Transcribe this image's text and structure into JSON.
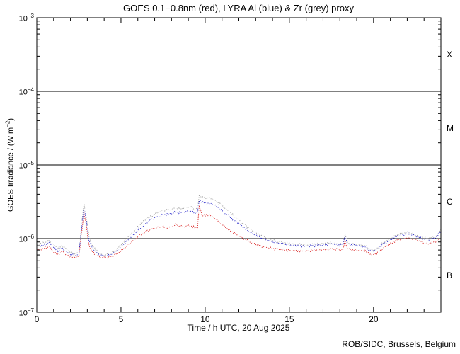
{
  "footer": "ROB/SIDC, Brussels, Belgium",
  "chart_data": {
    "type": "line",
    "title": "GOES 0.1−0.8nm (red), LYRA Al (blue) & Zr (grey) proxy",
    "xlabel": "Time / h UTC, 20 Aug 2025",
    "ylabel_main": "GOES Irradiance / (W m",
    "ylabel_sup": "−2",
    "ylabel_close": ")",
    "y_unit": "W m^-2",
    "xlim": [
      0,
      24
    ],
    "ylog_exponent_range": [
      -7,
      -3
    ],
    "x_major_ticks": [
      0,
      5,
      10,
      15,
      20
    ],
    "x_minor_step_hours": 1,
    "y_decade_exponents": [
      -3,
      -4,
      -5,
      -6,
      -7
    ],
    "threshold_lines": [
      0.0001,
      1e-05,
      1e-06
    ],
    "flare_classes": [
      {
        "label": "X",
        "band_log_center": -3.5
      },
      {
        "label": "M",
        "band_log_center": -4.5
      },
      {
        "label": "C",
        "band_log_center": -5.5
      },
      {
        "label": "B",
        "band_log_center": -6.5
      }
    ],
    "grid": "off",
    "legend": "encoded in title",
    "value_scale": 1e-06,
    "x_hours": [
      0,
      0.25,
      0.5,
      0.75,
      1,
      1.25,
      1.5,
      1.75,
      2,
      2.25,
      2.5,
      2.65,
      2.8,
      2.95,
      3.1,
      3.25,
      3.5,
      3.75,
      4,
      4.25,
      4.5,
      4.75,
      5,
      5.25,
      5.5,
      5.75,
      6,
      6.25,
      6.5,
      6.75,
      7,
      7.25,
      7.5,
      7.75,
      8,
      8.25,
      8.5,
      8.75,
      9,
      9.25,
      9.4,
      9.55,
      9.65,
      9.8,
      10,
      10.25,
      10.5,
      10.75,
      11,
      11.25,
      11.5,
      11.75,
      12,
      12.25,
      12.5,
      12.75,
      13,
      13.25,
      13.5,
      13.75,
      14,
      14.25,
      14.5,
      14.75,
      15,
      15.5,
      16,
      16.5,
      17,
      17.5,
      18,
      18.2,
      18.3,
      18.45,
      18.75,
      19,
      19.25,
      19.5,
      19.75,
      20,
      20.25,
      20.5,
      20.75,
      21,
      21.25,
      21.5,
      21.75,
      22,
      22.25,
      22.5,
      22.75,
      23,
      23.25,
      23.5,
      23.75,
      24
    ],
    "series": [
      {
        "name": "GOES 0.1-0.8nm",
        "color": "#d81f1f",
        "values": [
          0.7,
          0.72,
          0.75,
          0.78,
          0.66,
          0.6,
          0.67,
          0.6,
          0.57,
          0.56,
          0.58,
          1.1,
          2.3,
          1.4,
          0.82,
          0.68,
          0.6,
          0.56,
          0.55,
          0.56,
          0.58,
          0.62,
          0.68,
          0.76,
          0.86,
          0.95,
          1.05,
          1.15,
          1.25,
          1.32,
          1.38,
          1.42,
          1.45,
          1.42,
          1.45,
          1.55,
          1.48,
          1.45,
          1.5,
          1.45,
          1.4,
          1.45,
          2.8,
          2.1,
          2.05,
          2.1,
          1.95,
          1.75,
          1.55,
          1.4,
          1.28,
          1.18,
          1.08,
          1.0,
          0.94,
          0.88,
          0.84,
          0.8,
          0.77,
          0.75,
          0.73,
          0.72,
          0.71,
          0.7,
          0.69,
          0.68,
          0.68,
          0.7,
          0.7,
          0.73,
          0.7,
          0.72,
          0.95,
          0.73,
          0.7,
          0.7,
          0.69,
          0.68,
          0.62,
          0.6,
          0.65,
          0.72,
          0.79,
          0.85,
          0.92,
          0.97,
          1.0,
          1.02,
          1.0,
          0.97,
          0.92,
          0.88,
          0.85,
          0.9,
          0.93,
          1.0
        ]
      },
      {
        "name": "LYRA Al proxy",
        "color": "#2323c8",
        "values": [
          0.78,
          0.8,
          0.82,
          0.88,
          0.76,
          0.68,
          0.74,
          0.66,
          0.61,
          0.59,
          0.61,
          1.3,
          2.6,
          1.7,
          0.95,
          0.78,
          0.66,
          0.6,
          0.58,
          0.59,
          0.62,
          0.68,
          0.77,
          0.88,
          1.0,
          1.12,
          1.3,
          1.45,
          1.62,
          1.78,
          1.9,
          2.0,
          2.1,
          2.15,
          2.2,
          2.28,
          2.25,
          2.3,
          2.35,
          2.3,
          2.2,
          2.3,
          3.3,
          3.15,
          3.05,
          3.0,
          2.9,
          2.65,
          2.4,
          2.15,
          1.95,
          1.75,
          1.6,
          1.45,
          1.3,
          1.2,
          1.1,
          1.04,
          0.99,
          0.94,
          0.91,
          0.88,
          0.86,
          0.84,
          0.82,
          0.8,
          0.79,
          0.81,
          0.82,
          0.85,
          0.81,
          0.83,
          1.1,
          0.85,
          0.81,
          0.81,
          0.79,
          0.77,
          0.7,
          0.68,
          0.72,
          0.82,
          0.89,
          0.96,
          1.04,
          1.1,
          1.13,
          1.17,
          1.13,
          1.08,
          1.02,
          0.98,
          0.96,
          1.0,
          1.04,
          1.28
        ]
      },
      {
        "name": "LYRA Zr proxy",
        "color": "#9a9a9a",
        "values": [
          0.84,
          0.86,
          0.88,
          0.95,
          0.82,
          0.74,
          0.8,
          0.72,
          0.65,
          0.62,
          0.64,
          1.5,
          2.9,
          1.9,
          1.05,
          0.85,
          0.7,
          0.62,
          0.6,
          0.61,
          0.65,
          0.72,
          0.82,
          0.95,
          1.1,
          1.25,
          1.45,
          1.65,
          1.85,
          2.0,
          2.15,
          2.3,
          2.4,
          2.45,
          2.5,
          2.6,
          2.55,
          2.6,
          2.7,
          2.65,
          2.5,
          2.6,
          3.9,
          3.7,
          3.6,
          3.55,
          3.4,
          3.1,
          2.8,
          2.5,
          2.25,
          2.0,
          1.8,
          1.6,
          1.45,
          1.3,
          1.2,
          1.12,
          1.06,
          1.0,
          0.96,
          0.92,
          0.9,
          0.88,
          0.86,
          0.84,
          0.82,
          0.84,
          0.85,
          0.88,
          0.84,
          0.86,
          1.15,
          0.88,
          0.84,
          0.84,
          0.82,
          0.8,
          0.72,
          0.7,
          0.75,
          0.85,
          0.92,
          1.0,
          1.08,
          1.15,
          1.18,
          1.22,
          1.18,
          1.12,
          1.06,
          1.02,
          1.0,
          1.05,
          1.08,
          1.35
        ]
      }
    ],
    "colors": {
      "axis": "#000000",
      "background": "#ffffff"
    }
  }
}
